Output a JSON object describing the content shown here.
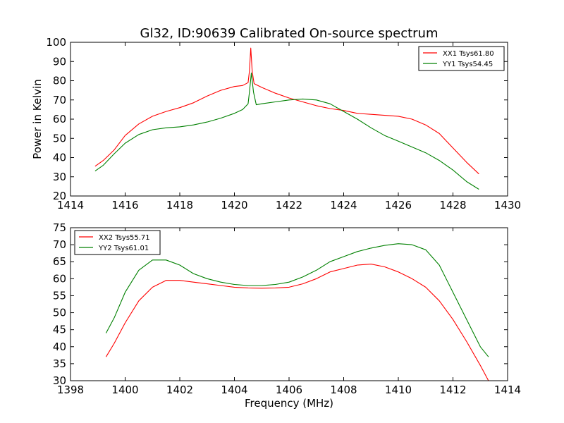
{
  "chart_data": [
    {
      "type": "line",
      "title": "Gl32, ID:90639 Calibrated On-source spectrum",
      "ylabel": "Power in Kelvin",
      "xlabel": "",
      "xlim": [
        1414,
        1430
      ],
      "ylim": [
        20,
        100
      ],
      "xticks": [
        "1414",
        "1416",
        "1418",
        "1420",
        "1422",
        "1424",
        "1426",
        "1428",
        "1430"
      ],
      "yticks": [
        "20",
        "30",
        "40",
        "50",
        "60",
        "70",
        "80",
        "90",
        "100"
      ],
      "grid": false,
      "legend_position": "top-right",
      "series": [
        {
          "name": "XX1 Tsys61.80",
          "color": "#ff0000",
          "points": [
            [
              1414.9,
              35.5
            ],
            [
              1415.2,
              38.5
            ],
            [
              1415.6,
              44.0
            ],
            [
              1416.0,
              51.5
            ],
            [
              1416.5,
              57.5
            ],
            [
              1417.0,
              61.5
            ],
            [
              1417.5,
              64.0
            ],
            [
              1418.0,
              66.0
            ],
            [
              1418.5,
              68.5
            ],
            [
              1419.0,
              72.0
            ],
            [
              1419.5,
              75.0
            ],
            [
              1420.0,
              77.0
            ],
            [
              1420.3,
              77.5
            ],
            [
              1420.5,
              79.0
            ],
            [
              1420.55,
              85.0
            ],
            [
              1420.6,
              97.0
            ],
            [
              1420.65,
              85.0
            ],
            [
              1420.72,
              78.5
            ],
            [
              1421.0,
              76.5
            ],
            [
              1421.5,
              73.5
            ],
            [
              1422.0,
              71.0
            ],
            [
              1422.5,
              69.0
            ],
            [
              1423.0,
              67.0
            ],
            [
              1423.5,
              65.5
            ],
            [
              1424.0,
              64.5
            ],
            [
              1424.5,
              63.0
            ],
            [
              1425.0,
              62.5
            ],
            [
              1425.5,
              62.0
            ],
            [
              1426.0,
              61.5
            ],
            [
              1426.5,
              60.0
            ],
            [
              1427.0,
              57.0
            ],
            [
              1427.5,
              52.5
            ],
            [
              1428.0,
              45.0
            ],
            [
              1428.5,
              37.5
            ],
            [
              1428.95,
              31.5
            ]
          ]
        },
        {
          "name": "YY1 Tsys54.45",
          "color": "#008000",
          "points": [
            [
              1414.9,
              33.0
            ],
            [
              1415.2,
              36.0
            ],
            [
              1415.6,
              42.0
            ],
            [
              1416.0,
              47.5
            ],
            [
              1416.5,
              52.0
            ],
            [
              1417.0,
              54.5
            ],
            [
              1417.5,
              55.5
            ],
            [
              1418.0,
              56.0
            ],
            [
              1418.5,
              57.0
            ],
            [
              1419.0,
              58.5
            ],
            [
              1419.5,
              60.5
            ],
            [
              1420.0,
              63.0
            ],
            [
              1420.3,
              65.0
            ],
            [
              1420.5,
              68.0
            ],
            [
              1420.55,
              74.0
            ],
            [
              1420.62,
              84.0
            ],
            [
              1420.7,
              74.0
            ],
            [
              1420.8,
              67.5
            ],
            [
              1421.0,
              68.0
            ],
            [
              1421.5,
              69.0
            ],
            [
              1422.0,
              70.0
            ],
            [
              1422.5,
              70.5
            ],
            [
              1423.0,
              70.0
            ],
            [
              1423.5,
              68.0
            ],
            [
              1424.0,
              64.0
            ],
            [
              1424.5,
              60.0
            ],
            [
              1425.0,
              55.5
            ],
            [
              1425.5,
              51.5
            ],
            [
              1426.0,
              48.5
            ],
            [
              1426.5,
              45.5
            ],
            [
              1427.0,
              42.5
            ],
            [
              1427.5,
              38.5
            ],
            [
              1428.0,
              33.5
            ],
            [
              1428.5,
              27.5
            ],
            [
              1428.95,
              23.5
            ]
          ]
        }
      ]
    },
    {
      "type": "line",
      "title": "",
      "xlabel": "Frequency (MHz)",
      "ylabel": "",
      "xlim": [
        1398,
        1414
      ],
      "ylim": [
        30,
        75
      ],
      "xticks": [
        "1398",
        "1400",
        "1402",
        "1404",
        "1406",
        "1408",
        "1410",
        "1412",
        "1414"
      ],
      "yticks": [
        "30",
        "35",
        "40",
        "45",
        "50",
        "55",
        "60",
        "65",
        "70",
        "75"
      ],
      "grid": false,
      "legend_position": "top-left",
      "series": [
        {
          "name": "XX2 Tsys55.71",
          "color": "#ff0000",
          "points": [
            [
              1399.3,
              37.0
            ],
            [
              1399.6,
              41.0
            ],
            [
              1400.0,
              47.0
            ],
            [
              1400.5,
              53.5
            ],
            [
              1401.0,
              57.5
            ],
            [
              1401.5,
              59.5
            ],
            [
              1402.0,
              59.5
            ],
            [
              1402.5,
              59.0
            ],
            [
              1403.0,
              58.5
            ],
            [
              1403.5,
              58.0
            ],
            [
              1404.0,
              57.5
            ],
            [
              1404.5,
              57.3
            ],
            [
              1405.0,
              57.2
            ],
            [
              1405.5,
              57.3
            ],
            [
              1406.0,
              57.5
            ],
            [
              1406.5,
              58.5
            ],
            [
              1407.0,
              60.0
            ],
            [
              1407.5,
              62.0
            ],
            [
              1408.0,
              63.0
            ],
            [
              1408.5,
              64.0
            ],
            [
              1409.0,
              64.3
            ],
            [
              1409.5,
              63.5
            ],
            [
              1410.0,
              62.0
            ],
            [
              1410.5,
              60.0
            ],
            [
              1411.0,
              57.5
            ],
            [
              1411.5,
              53.5
            ],
            [
              1412.0,
              48.0
            ],
            [
              1412.5,
              41.5
            ],
            [
              1413.0,
              34.5
            ],
            [
              1413.3,
              30.0
            ]
          ]
        },
        {
          "name": "YY2 Tsys61.01",
          "color": "#008000",
          "points": [
            [
              1399.3,
              44.0
            ],
            [
              1399.6,
              48.5
            ],
            [
              1400.0,
              56.0
            ],
            [
              1400.5,
              62.5
            ],
            [
              1401.0,
              65.5
            ],
            [
              1401.5,
              65.5
            ],
            [
              1402.0,
              64.0
            ],
            [
              1402.5,
              61.5
            ],
            [
              1403.0,
              60.0
            ],
            [
              1403.5,
              59.0
            ],
            [
              1404.0,
              58.3
            ],
            [
              1404.5,
              58.0
            ],
            [
              1405.0,
              58.0
            ],
            [
              1405.5,
              58.3
            ],
            [
              1406.0,
              59.0
            ],
            [
              1406.5,
              60.5
            ],
            [
              1407.0,
              62.5
            ],
            [
              1407.5,
              65.0
            ],
            [
              1408.0,
              66.5
            ],
            [
              1408.5,
              68.0
            ],
            [
              1409.0,
              69.0
            ],
            [
              1409.5,
              69.8
            ],
            [
              1410.0,
              70.3
            ],
            [
              1410.5,
              70.0
            ],
            [
              1411.0,
              68.5
            ],
            [
              1411.5,
              64.0
            ],
            [
              1412.0,
              56.0
            ],
            [
              1412.5,
              48.0
            ],
            [
              1413.0,
              40.0
            ],
            [
              1413.3,
              37.0
            ]
          ]
        }
      ]
    }
  ]
}
